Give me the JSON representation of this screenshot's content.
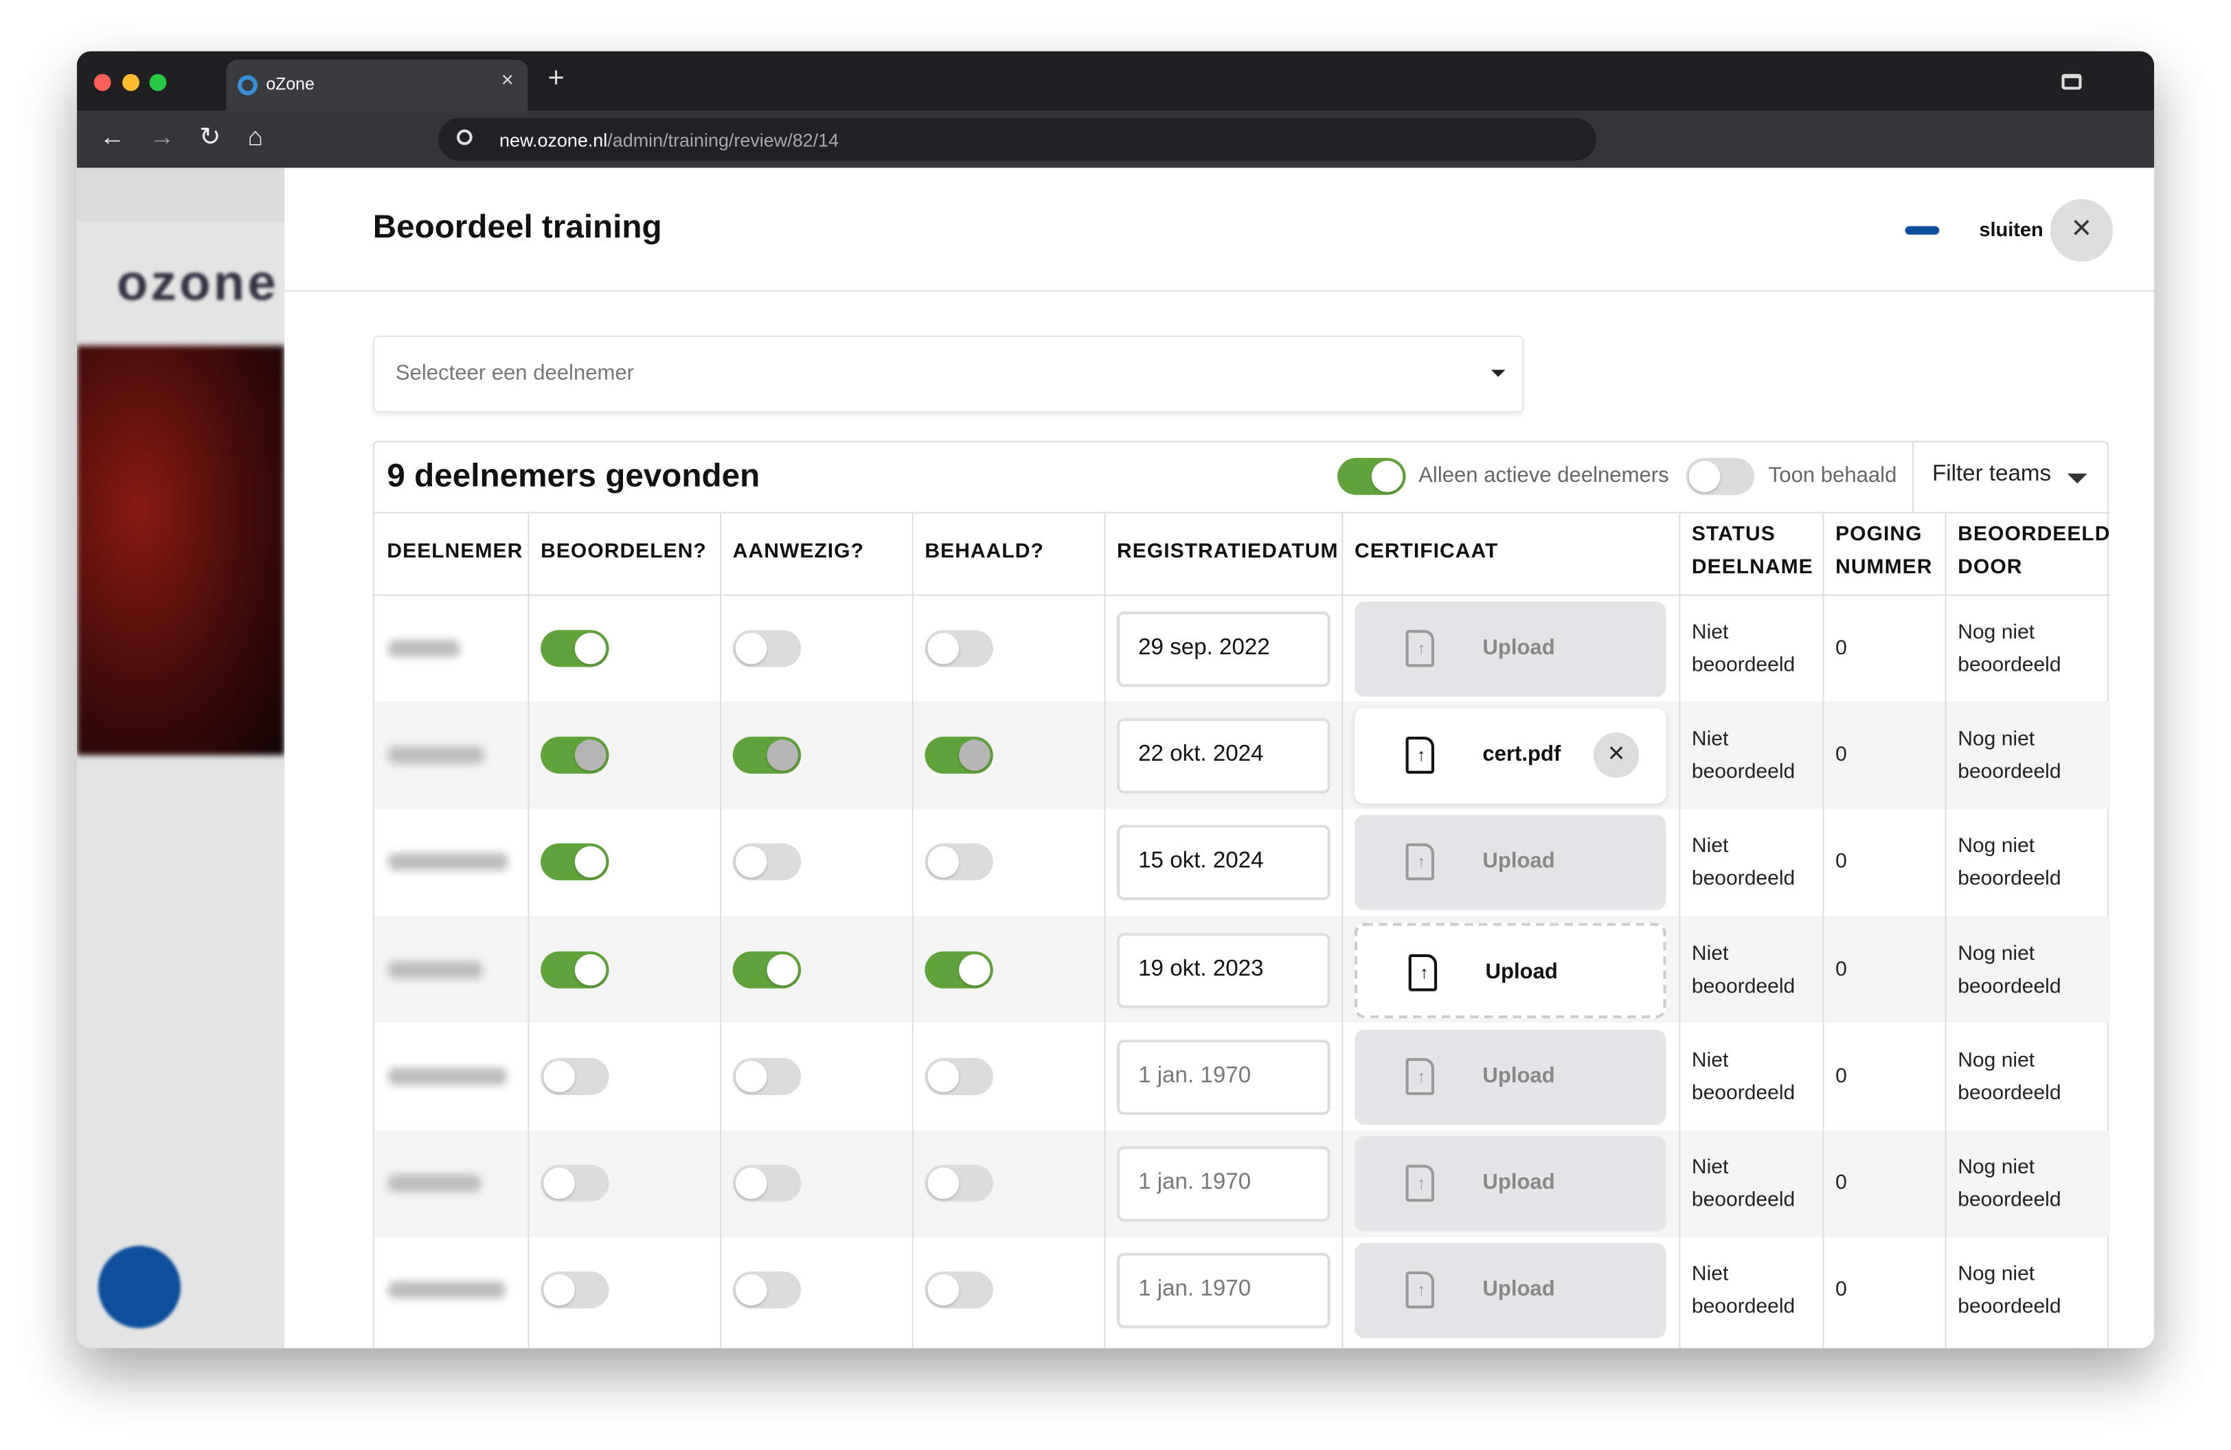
{
  "browser": {
    "tab_title": "oZone",
    "url_host": "new.ozone.nl",
    "url_path": "/admin/training/review/82/14"
  },
  "sidebar": {
    "logo": "ozone"
  },
  "modal": {
    "title": "Beoordeel training",
    "close_label": "sluiten",
    "select_placeholder": "Selecteer een deelnemer",
    "results_title": "9 deelnemers gevonden",
    "toggle_active_label": "Alleen actieve deelnemers",
    "toggle_active_on": true,
    "toggle_achieved_label": "Toon behaald",
    "toggle_achieved_on": false,
    "filter_label": "Filter teams"
  },
  "table": {
    "headers": [
      "DEELNEMER",
      "BEOORDELEN?",
      "AANWEZIG?",
      "BEHAALD?",
      "REGISTRATIEDATUM",
      "CERTIFICAAT",
      "STATUS DEELNAME",
      "POGING NUMMER",
      "BEOORDEELD DOOR"
    ],
    "rows": [
      {
        "assess": true,
        "present": false,
        "achieved": false,
        "locked": false,
        "date": "29 sep. 2022",
        "date_muted": false,
        "certificate": "Upload",
        "certificate_state": "disabled",
        "status": "Niet beoordeeld",
        "attempt": 0,
        "assessed_by": "Nog niet beoordeeld"
      },
      {
        "assess": true,
        "present": true,
        "achieved": true,
        "locked": true,
        "date": "22 okt. 2024",
        "date_muted": false,
        "certificate": "cert.pdf",
        "certificate_state": "file",
        "status": "Niet beoordeeld",
        "attempt": 0,
        "assessed_by": "Nog niet beoordeeld"
      },
      {
        "assess": true,
        "present": false,
        "achieved": false,
        "locked": false,
        "date": "15 okt. 2024",
        "date_muted": false,
        "certificate": "Upload",
        "certificate_state": "disabled",
        "status": "Niet beoordeeld",
        "attempt": 0,
        "assessed_by": "Nog niet beoordeeld"
      },
      {
        "assess": true,
        "present": true,
        "achieved": true,
        "locked": false,
        "date": "19 okt. 2023",
        "date_muted": false,
        "certificate": "Upload",
        "certificate_state": "active",
        "status": "Niet beoordeeld",
        "attempt": 0,
        "assessed_by": "Nog niet beoordeeld"
      },
      {
        "assess": false,
        "present": false,
        "achieved": false,
        "locked": false,
        "date": "1 jan. 1970",
        "date_muted": true,
        "certificate": "Upload",
        "certificate_state": "disabled",
        "status": "Niet beoordeeld",
        "attempt": 0,
        "assessed_by": "Nog niet beoordeeld"
      },
      {
        "assess": false,
        "present": false,
        "achieved": false,
        "locked": false,
        "date": "1 jan. 1970",
        "date_muted": true,
        "certificate": "Upload",
        "certificate_state": "disabled",
        "status": "Niet beoordeeld",
        "attempt": 0,
        "assessed_by": "Nog niet beoordeeld"
      },
      {
        "assess": false,
        "present": false,
        "achieved": false,
        "locked": false,
        "date": "1 jan. 1970",
        "date_muted": true,
        "certificate": "Upload",
        "certificate_state": "disabled",
        "status": "Niet beoordeeld",
        "attempt": 0,
        "assessed_by": "Nog niet beoordeeld"
      }
    ]
  }
}
